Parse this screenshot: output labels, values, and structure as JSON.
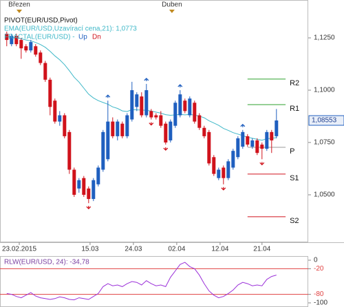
{
  "chart_data": [
    {
      "type": "candlestick",
      "legend": {
        "pivot": "PIVOT(EUR/USD,Pivot)",
        "ema": "EMA(EUR/USD,Uzavírací cena,21): 1,0773",
        "fractal": "FRACTAL(EUR/USD)  -",
        "up": "Up",
        "dn": "Dn"
      },
      "x": [
        0,
        1,
        2,
        3,
        4,
        5,
        6,
        7,
        8,
        9,
        10,
        11,
        12,
        13,
        14,
        15,
        16,
        17,
        18,
        19,
        20,
        21,
        22,
        23,
        24,
        25,
        26,
        27,
        28,
        29,
        30,
        31,
        32,
        33,
        34,
        35,
        36,
        37,
        38,
        39,
        40,
        41,
        42,
        43,
        44,
        45,
        46,
        47,
        48,
        49,
        50,
        51,
        52,
        53,
        54,
        55,
        56
      ],
      "open": [
        1.127,
        1.122,
        1.126,
        1.124,
        1.121,
        1.119,
        1.121,
        1.118,
        1.113,
        1.105,
        1.095,
        1.085,
        1.088,
        1.08,
        1.062,
        1.053,
        1.058,
        1.053,
        1.048,
        1.055,
        1.062,
        1.067,
        1.085,
        1.078,
        1.084,
        1.078,
        1.086,
        1.092,
        1.097,
        1.088,
        1.09,
        1.088,
        1.088,
        1.084,
        1.076,
        1.083,
        1.088,
        1.095,
        1.088,
        1.094,
        1.088,
        1.082,
        1.08,
        1.068,
        1.058,
        1.063,
        1.058,
        1.063,
        1.068,
        1.073,
        1.078,
        1.073,
        1.076,
        1.074,
        1.072,
        1.08,
        1.078
      ],
      "high": [
        1.128,
        1.127,
        1.127,
        1.125,
        1.122,
        1.124,
        1.122,
        1.119,
        1.114,
        1.106,
        1.096,
        1.09,
        1.089,
        1.081,
        1.063,
        1.058,
        1.059,
        1.054,
        1.058,
        1.064,
        1.081,
        1.095,
        1.087,
        1.086,
        1.085,
        1.089,
        1.104,
        1.099,
        1.099,
        1.103,
        1.091,
        1.089,
        1.09,
        1.085,
        1.086,
        1.095,
        1.1,
        1.096,
        1.097,
        1.095,
        1.089,
        1.083,
        1.081,
        1.069,
        1.063,
        1.064,
        1.067,
        1.072,
        1.078,
        1.081,
        1.079,
        1.077,
        1.077,
        1.075,
        1.081,
        1.081,
        1.091
      ],
      "low": [
        1.121,
        1.121,
        1.121,
        1.115,
        1.118,
        1.118,
        1.116,
        1.112,
        1.104,
        1.088,
        1.084,
        1.083,
        1.077,
        1.06,
        1.049,
        1.051,
        1.049,
        1.046,
        1.047,
        1.054,
        1.061,
        1.066,
        1.077,
        1.076,
        1.077,
        1.077,
        1.085,
        1.09,
        1.087,
        1.087,
        1.086,
        1.086,
        1.082,
        1.074,
        1.075,
        1.082,
        1.087,
        1.089,
        1.087,
        1.084,
        1.081,
        1.077,
        1.064,
        1.059,
        1.057,
        1.055,
        1.057,
        1.062,
        1.067,
        1.072,
        1.073,
        1.072,
        1.069,
        1.067,
        1.071,
        1.07,
        1.077
      ],
      "close": [
        1.124,
        1.126,
        1.122,
        1.12,
        1.119,
        1.123,
        1.117,
        1.113,
        1.105,
        1.092,
        1.085,
        1.088,
        1.078,
        1.062,
        1.05,
        1.057,
        1.05,
        1.048,
        1.057,
        1.063,
        1.08,
        1.085,
        1.078,
        1.085,
        1.078,
        1.088,
        1.1,
        1.098,
        1.088,
        1.1,
        1.087,
        1.087,
        1.083,
        1.075,
        1.085,
        1.094,
        1.098,
        1.09,
        1.096,
        1.085,
        1.082,
        1.078,
        1.065,
        1.06,
        1.062,
        1.058,
        1.066,
        1.071,
        1.077,
        1.08,
        1.074,
        1.076,
        1.07,
        1.072,
        1.08,
        1.076,
        1.08553
      ],
      "up_color": "#1f5fbf",
      "down_color": "#d0121b",
      "ema": {
        "color": "#3fb8c8",
        "values": [
          1.1255,
          1.1254,
          1.125,
          1.1246,
          1.124,
          1.1236,
          1.1228,
          1.1218,
          1.1205,
          1.1186,
          1.1164,
          1.1145,
          1.1122,
          1.1093,
          1.1062,
          1.1039,
          1.101,
          1.0981,
          1.0963,
          1.095,
          1.0941,
          1.0933,
          1.092,
          1.0913,
          1.0901,
          1.0898,
          1.0907,
          1.0906,
          1.0905,
          1.0904,
          1.09,
          1.0895,
          1.089,
          1.0883,
          1.088,
          1.0882,
          1.0884,
          1.0882,
          1.0884,
          1.0881,
          1.0876,
          1.0868,
          1.0854,
          1.0843,
          1.0832,
          1.0817,
          1.0808,
          1.0797,
          1.079,
          1.0783,
          1.0775,
          1.077,
          1.0765,
          1.0761,
          1.0768,
          1.077,
          1.0773
        ]
      },
      "fractal_up": {
        "x": [
          21,
          29,
          36,
          49
        ],
        "values": [
          1.095,
          1.103,
          1.1,
          1.081
        ]
      },
      "fractal_down": {
        "x": [
          17,
          30,
          33,
          45,
          53
        ],
        "values": [
          1.046,
          1.086,
          1.074,
          1.055,
          1.067
        ]
      },
      "pivots": [
        {
          "name": "R2",
          "value": 1.1053,
          "color": "#2ca02c"
        },
        {
          "name": "R1",
          "value": 1.0931,
          "color": "#2ca02c"
        },
        {
          "name": "P",
          "value": 1.0727,
          "color": "#999999"
        },
        {
          "name": "S1",
          "value": 1.0599,
          "color": "#d0121b"
        },
        {
          "name": "S2",
          "value": 1.0395,
          "color": "#d0121b"
        }
      ],
      "pivot_span": [
        50,
        57.9
      ],
      "last_price": {
        "value": 1.08553,
        "label": "1,08553"
      },
      "xlim": [
        -1.4,
        62.6
      ],
      "ylim": [
        1.0273,
        1.1431
      ],
      "yticks": [
        {
          "value": 1.125,
          "label": "1,1250"
        },
        {
          "value": 1.1,
          "label": "1,1000"
        },
        {
          "value": 1.075,
          "label": "1,0750"
        },
        {
          "value": 1.05,
          "label": "1,0500"
        }
      ],
      "xticks": [
        {
          "value": 2.6,
          "label": "23.02.2015"
        },
        {
          "value": 17.3,
          "label": "15.03"
        },
        {
          "value": 26.3,
          "label": "24.03"
        },
        {
          "value": 35.3,
          "label": "02.04"
        },
        {
          "value": 44.3,
          "label": "12.04"
        },
        {
          "value": 53,
          "label": "21.04"
        }
      ],
      "top_ticks": [
        {
          "value": 2.6,
          "label": "Březen"
        },
        {
          "value": 34.3,
          "label": "Duben"
        }
      ]
    },
    {
      "type": "line",
      "title": "RLW(EUR/USD, 24): -34,78",
      "color": "#9b30d9",
      "x": [
        0,
        1,
        2,
        3,
        4,
        5,
        6,
        7,
        8,
        9,
        10,
        11,
        12,
        13,
        14,
        15,
        16,
        17,
        18,
        19,
        20,
        21,
        22,
        23,
        24,
        25,
        26,
        27,
        28,
        29,
        30,
        31,
        32,
        33,
        34,
        35,
        36,
        37,
        38,
        39,
        40,
        41,
        42,
        43,
        44,
        45,
        46,
        47,
        48,
        49,
        50,
        51,
        52,
        53,
        54,
        55,
        56
      ],
      "values": [
        -78,
        -80,
        -85,
        -88,
        -82,
        -76,
        -84,
        -88,
        -90,
        -92,
        -90,
        -86,
        -88,
        -92,
        -93,
        -88,
        -90,
        -92,
        -85,
        -78,
        -62,
        -55,
        -60,
        -58,
        -62,
        -55,
        -50,
        -52,
        -58,
        -48,
        -55,
        -60,
        -58,
        -62,
        -40,
        -25,
        -10,
        -5,
        -15,
        -20,
        -35,
        -55,
        -72,
        -82,
        -88,
        -85,
        -78,
        -70,
        -58,
        -52,
        -55,
        -60,
        -58,
        -60,
        -45,
        -38,
        -34.78
      ],
      "levels": [
        -20,
        -80
      ],
      "level_color": "#e04040",
      "xlim": [
        -1.4,
        62.6
      ],
      "ylim": [
        -109.7,
        9.7
      ],
      "yticks": [
        0,
        -20,
        -80,
        -100
      ]
    }
  ]
}
